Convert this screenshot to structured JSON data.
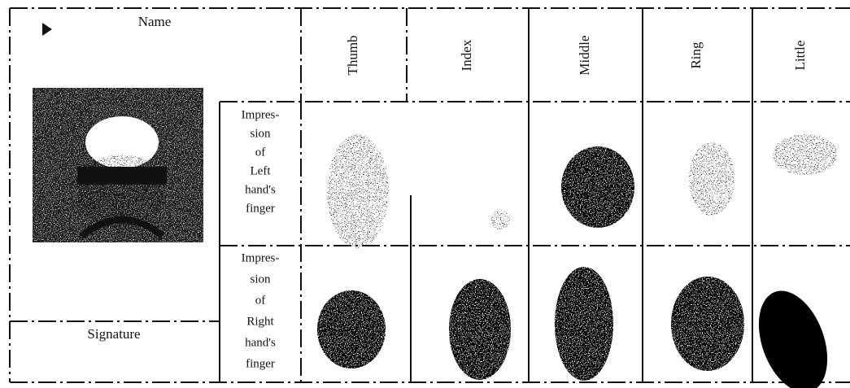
{
  "form": {
    "name_label": "Name",
    "fingers": [
      "Thumb",
      "Index",
      "Middle",
      "Ring",
      "Little"
    ],
    "rows": [
      {
        "lines": [
          "Impres-",
          "sion",
          "of",
          "Left",
          "hand's",
          "finger"
        ]
      },
      {
        "lines": [
          "Impres-",
          "sion",
          "of",
          "Right",
          "hand's",
          "finger"
        ]
      }
    ],
    "signature_label": "Signature"
  }
}
